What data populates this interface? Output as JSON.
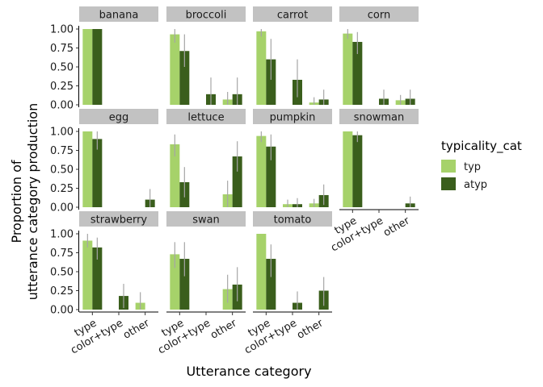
{
  "chart_data": {
    "type": "bar",
    "facet_by": "target",
    "xlabel": "Utterance category",
    "ylabel_lines": [
      "Proportion of",
      "utterance category production"
    ],
    "categories": [
      "type",
      "color+type",
      "other"
    ],
    "ylim": [
      0,
      1
    ],
    "yticks": [
      "0.00",
      "0.25",
      "0.50",
      "0.75",
      "1.00"
    ],
    "legend": {
      "title": "typicality_cat",
      "placement": "right",
      "entries": [
        {
          "label": "typ",
          "color": "#a6d26a"
        },
        {
          "label": "atyp",
          "color": "#3a5e1c"
        }
      ]
    },
    "grid": false,
    "panels": [
      {
        "title": "banana",
        "series": [
          {
            "name": "typ",
            "values": [
              1.0,
              0.0,
              0.0
            ],
            "err_low": [
              1.0,
              0.0,
              0.0
            ],
            "err_high": [
              1.0,
              0.0,
              0.0
            ]
          },
          {
            "name": "atyp",
            "values": [
              1.0,
              0.0,
              0.0
            ],
            "err_low": [
              1.0,
              0.0,
              0.0
            ],
            "err_high": [
              1.0,
              0.0,
              0.0
            ]
          }
        ]
      },
      {
        "title": "broccoli",
        "series": [
          {
            "name": "typ",
            "values": [
              0.93,
              0.0,
              0.07
            ],
            "err_low": [
              0.82,
              0.0,
              0.0
            ],
            "err_high": [
              1.0,
              0.0,
              0.17
            ]
          },
          {
            "name": "atyp",
            "values": [
              0.71,
              0.14,
              0.14
            ],
            "err_low": [
              0.5,
              0.0,
              0.0
            ],
            "err_high": [
              0.93,
              0.36,
              0.36
            ]
          }
        ]
      },
      {
        "title": "carrot",
        "series": [
          {
            "name": "typ",
            "values": [
              0.97,
              0.0,
              0.03
            ],
            "err_low": [
              0.9,
              0.0,
              0.0
            ],
            "err_high": [
              1.0,
              0.0,
              0.1
            ]
          },
          {
            "name": "atyp",
            "values": [
              0.6,
              0.33,
              0.07
            ],
            "err_low": [
              0.33,
              0.1,
              0.0
            ],
            "err_high": [
              0.87,
              0.6,
              0.2
            ]
          }
        ]
      },
      {
        "title": "corn",
        "series": [
          {
            "name": "typ",
            "values": [
              0.94,
              0.0,
              0.06
            ],
            "err_low": [
              0.87,
              0.0,
              0.0
            ],
            "err_high": [
              1.0,
              0.0,
              0.13
            ]
          },
          {
            "name": "atyp",
            "values": [
              0.83,
              0.08,
              0.08
            ],
            "err_low": [
              0.67,
              0.0,
              0.0
            ],
            "err_high": [
              0.96,
              0.2,
              0.2
            ]
          }
        ]
      },
      {
        "title": "egg",
        "series": [
          {
            "name": "typ",
            "values": [
              1.0,
              0.0,
              0.0
            ],
            "err_low": [
              1.0,
              0.0,
              0.0
            ],
            "err_high": [
              1.0,
              0.0,
              0.0
            ]
          },
          {
            "name": "atyp",
            "values": [
              0.9,
              0.0,
              0.1
            ],
            "err_low": [
              0.76,
              0.0,
              0.0
            ],
            "err_high": [
              1.0,
              0.0,
              0.24
            ]
          }
        ]
      },
      {
        "title": "lettuce",
        "series": [
          {
            "name": "typ",
            "values": [
              0.83,
              0.0,
              0.17
            ],
            "err_low": [
              0.67,
              0.0,
              0.0
            ],
            "err_high": [
              0.96,
              0.0,
              0.35
            ]
          },
          {
            "name": "atyp",
            "values": [
              0.33,
              0.0,
              0.67
            ],
            "err_low": [
              0.13,
              0.0,
              0.47
            ],
            "err_high": [
              0.53,
              0.0,
              0.87
            ]
          }
        ]
      },
      {
        "title": "pumpkin",
        "series": [
          {
            "name": "typ",
            "values": [
              0.94,
              0.04,
              0.05
            ],
            "err_low": [
              0.86,
              0.0,
              0.0
            ],
            "err_high": [
              1.0,
              0.1,
              0.11
            ]
          },
          {
            "name": "atyp",
            "values": [
              0.8,
              0.04,
              0.16
            ],
            "err_low": [
              0.62,
              0.0,
              0.03
            ],
            "err_high": [
              0.96,
              0.12,
              0.3
            ]
          }
        ]
      },
      {
        "title": "snowman",
        "series": [
          {
            "name": "typ",
            "values": [
              1.0,
              0.0,
              0.0
            ],
            "err_low": [
              1.0,
              0.0,
              0.0
            ],
            "err_high": [
              1.0,
              0.0,
              0.0
            ]
          },
          {
            "name": "atyp",
            "values": [
              0.95,
              0.0,
              0.05
            ],
            "err_low": [
              0.86,
              0.0,
              0.0
            ],
            "err_high": [
              1.0,
              0.0,
              0.14
            ]
          }
        ]
      },
      {
        "title": "strawberry",
        "series": [
          {
            "name": "typ",
            "values": [
              0.91,
              0.0,
              0.09
            ],
            "err_low": [
              0.82,
              0.0,
              0.0
            ],
            "err_high": [
              1.0,
              0.0,
              0.23
            ]
          },
          {
            "name": "atyp",
            "values": [
              0.82,
              0.18,
              0.0
            ],
            "err_low": [
              0.66,
              0.02,
              0.0
            ],
            "err_high": [
              0.95,
              0.34,
              0.0
            ]
          }
        ]
      },
      {
        "title": "swan",
        "series": [
          {
            "name": "typ",
            "values": [
              0.73,
              0.0,
              0.27
            ],
            "err_low": [
              0.55,
              0.0,
              0.09
            ],
            "err_high": [
              0.89,
              0.0,
              0.46
            ]
          },
          {
            "name": "atyp",
            "values": [
              0.67,
              0.0,
              0.33
            ],
            "err_low": [
              0.44,
              0.0,
              0.11
            ],
            "err_high": [
              0.89,
              0.0,
              0.56
            ]
          }
        ]
      },
      {
        "title": "tomato",
        "series": [
          {
            "name": "typ",
            "values": [
              1.0,
              0.0,
              0.0
            ],
            "err_low": [
              1.0,
              0.0,
              0.0
            ],
            "err_high": [
              1.0,
              0.0,
              0.0
            ]
          },
          {
            "name": "atyp",
            "values": [
              0.67,
              0.09,
              0.25
            ],
            "err_low": [
              0.43,
              0.0,
              0.05
            ],
            "err_high": [
              0.86,
              0.24,
              0.43
            ]
          }
        ]
      }
    ]
  }
}
